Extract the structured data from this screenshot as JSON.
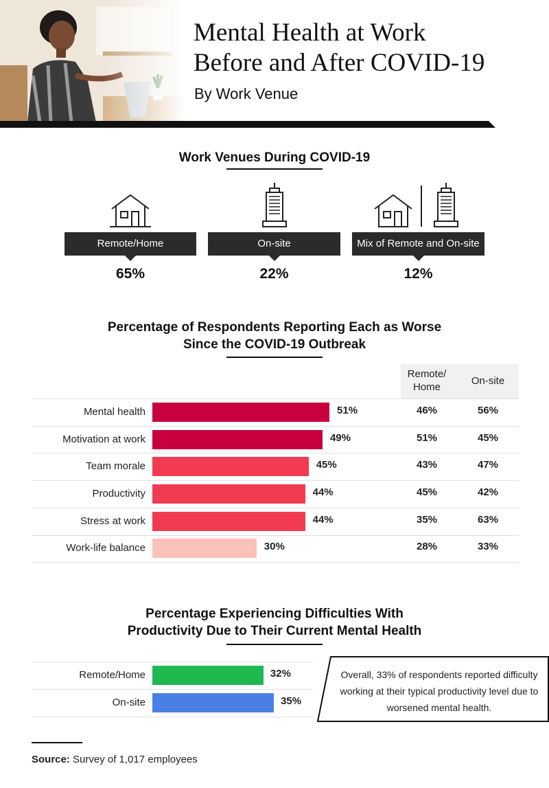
{
  "header": {
    "title_line1": "Mental Health at Work",
    "title_line2": "Before and After COVID-19",
    "subtitle": "By Work Venue"
  },
  "venues": {
    "heading": "Work Venues During COVID-19",
    "items": [
      {
        "label": "Remote/Home",
        "value": "65%",
        "icon": "house-icon"
      },
      {
        "label": "On-site",
        "value": "22%",
        "icon": "office-building-icon"
      },
      {
        "label": "Mix of Remote and On-site",
        "value": "12%",
        "icon": "house-and-building-icon"
      }
    ]
  },
  "worse": {
    "heading_line1": "Percentage of Respondents Reporting Each as Worse",
    "heading_line2": "Since the COVID-19 Outbreak",
    "col_remote_line1": "Remote/",
    "col_remote_line2": "Home",
    "col_onsite": "On-site",
    "rows": [
      {
        "label": "Mental health",
        "overall_label": "51%",
        "remote": "46%",
        "onsite": "56%"
      },
      {
        "label": "Motivation at work",
        "overall_label": "49%",
        "remote": "51%",
        "onsite": "45%"
      },
      {
        "label": "Team morale",
        "overall_label": "45%",
        "remote": "43%",
        "onsite": "47%"
      },
      {
        "label": "Productivity",
        "overall_label": "44%",
        "remote": "45%",
        "onsite": "42%"
      },
      {
        "label": "Stress at work",
        "overall_label": "44%",
        "remote": "35%",
        "onsite": "63%"
      },
      {
        "label": "Work-life balance",
        "overall_label": "30%",
        "remote": "28%",
        "onsite": "33%"
      }
    ]
  },
  "difficulty": {
    "heading_line1": "Percentage Experiencing Difficulties With",
    "heading_line2": "Productivity Due to Their Current Mental Health",
    "rows": [
      {
        "label": "Remote/Home",
        "value_label": "32%"
      },
      {
        "label": "On-site",
        "value_label": "35%"
      }
    ],
    "callout": "Overall, 33% of respondents reported difficulty working at their typical productivity level due to worsened mental health."
  },
  "source": {
    "label": "Source:",
    "text": " Survey of 1,017 employees"
  },
  "colors": {
    "bar_dark": "#c8003f",
    "bar_mid": "#f23a51",
    "bar_light": "#fbc1bb",
    "remote_green": "#20b851",
    "onsite_blue": "#4a7fe5",
    "dark": "#2b2b2b"
  },
  "chart_data": [
    {
      "type": "bar",
      "orientation": "horizontal",
      "title": "Percentage of Respondents Reporting Each as Worse Since the COVID-19 Outbreak",
      "categories": [
        "Mental health",
        "Motivation at work",
        "Team morale",
        "Productivity",
        "Stress at work",
        "Work-life balance"
      ],
      "values": [
        51,
        49,
        45,
        44,
        44,
        30
      ],
      "table_columns": [
        {
          "name": "Remote/Home",
          "values": [
            46,
            51,
            43,
            45,
            35,
            28
          ]
        },
        {
          "name": "On-site",
          "values": [
            56,
            45,
            47,
            42,
            63,
            33
          ]
        }
      ],
      "unit": "%",
      "grid": false
    },
    {
      "type": "bar",
      "orientation": "horizontal",
      "title": "Percentage Experiencing Difficulties With Productivity Due to Their Current Mental Health",
      "categories": [
        "Remote/Home",
        "On-site"
      ],
      "values": [
        32,
        35
      ],
      "unit": "%",
      "grid": false
    }
  ]
}
